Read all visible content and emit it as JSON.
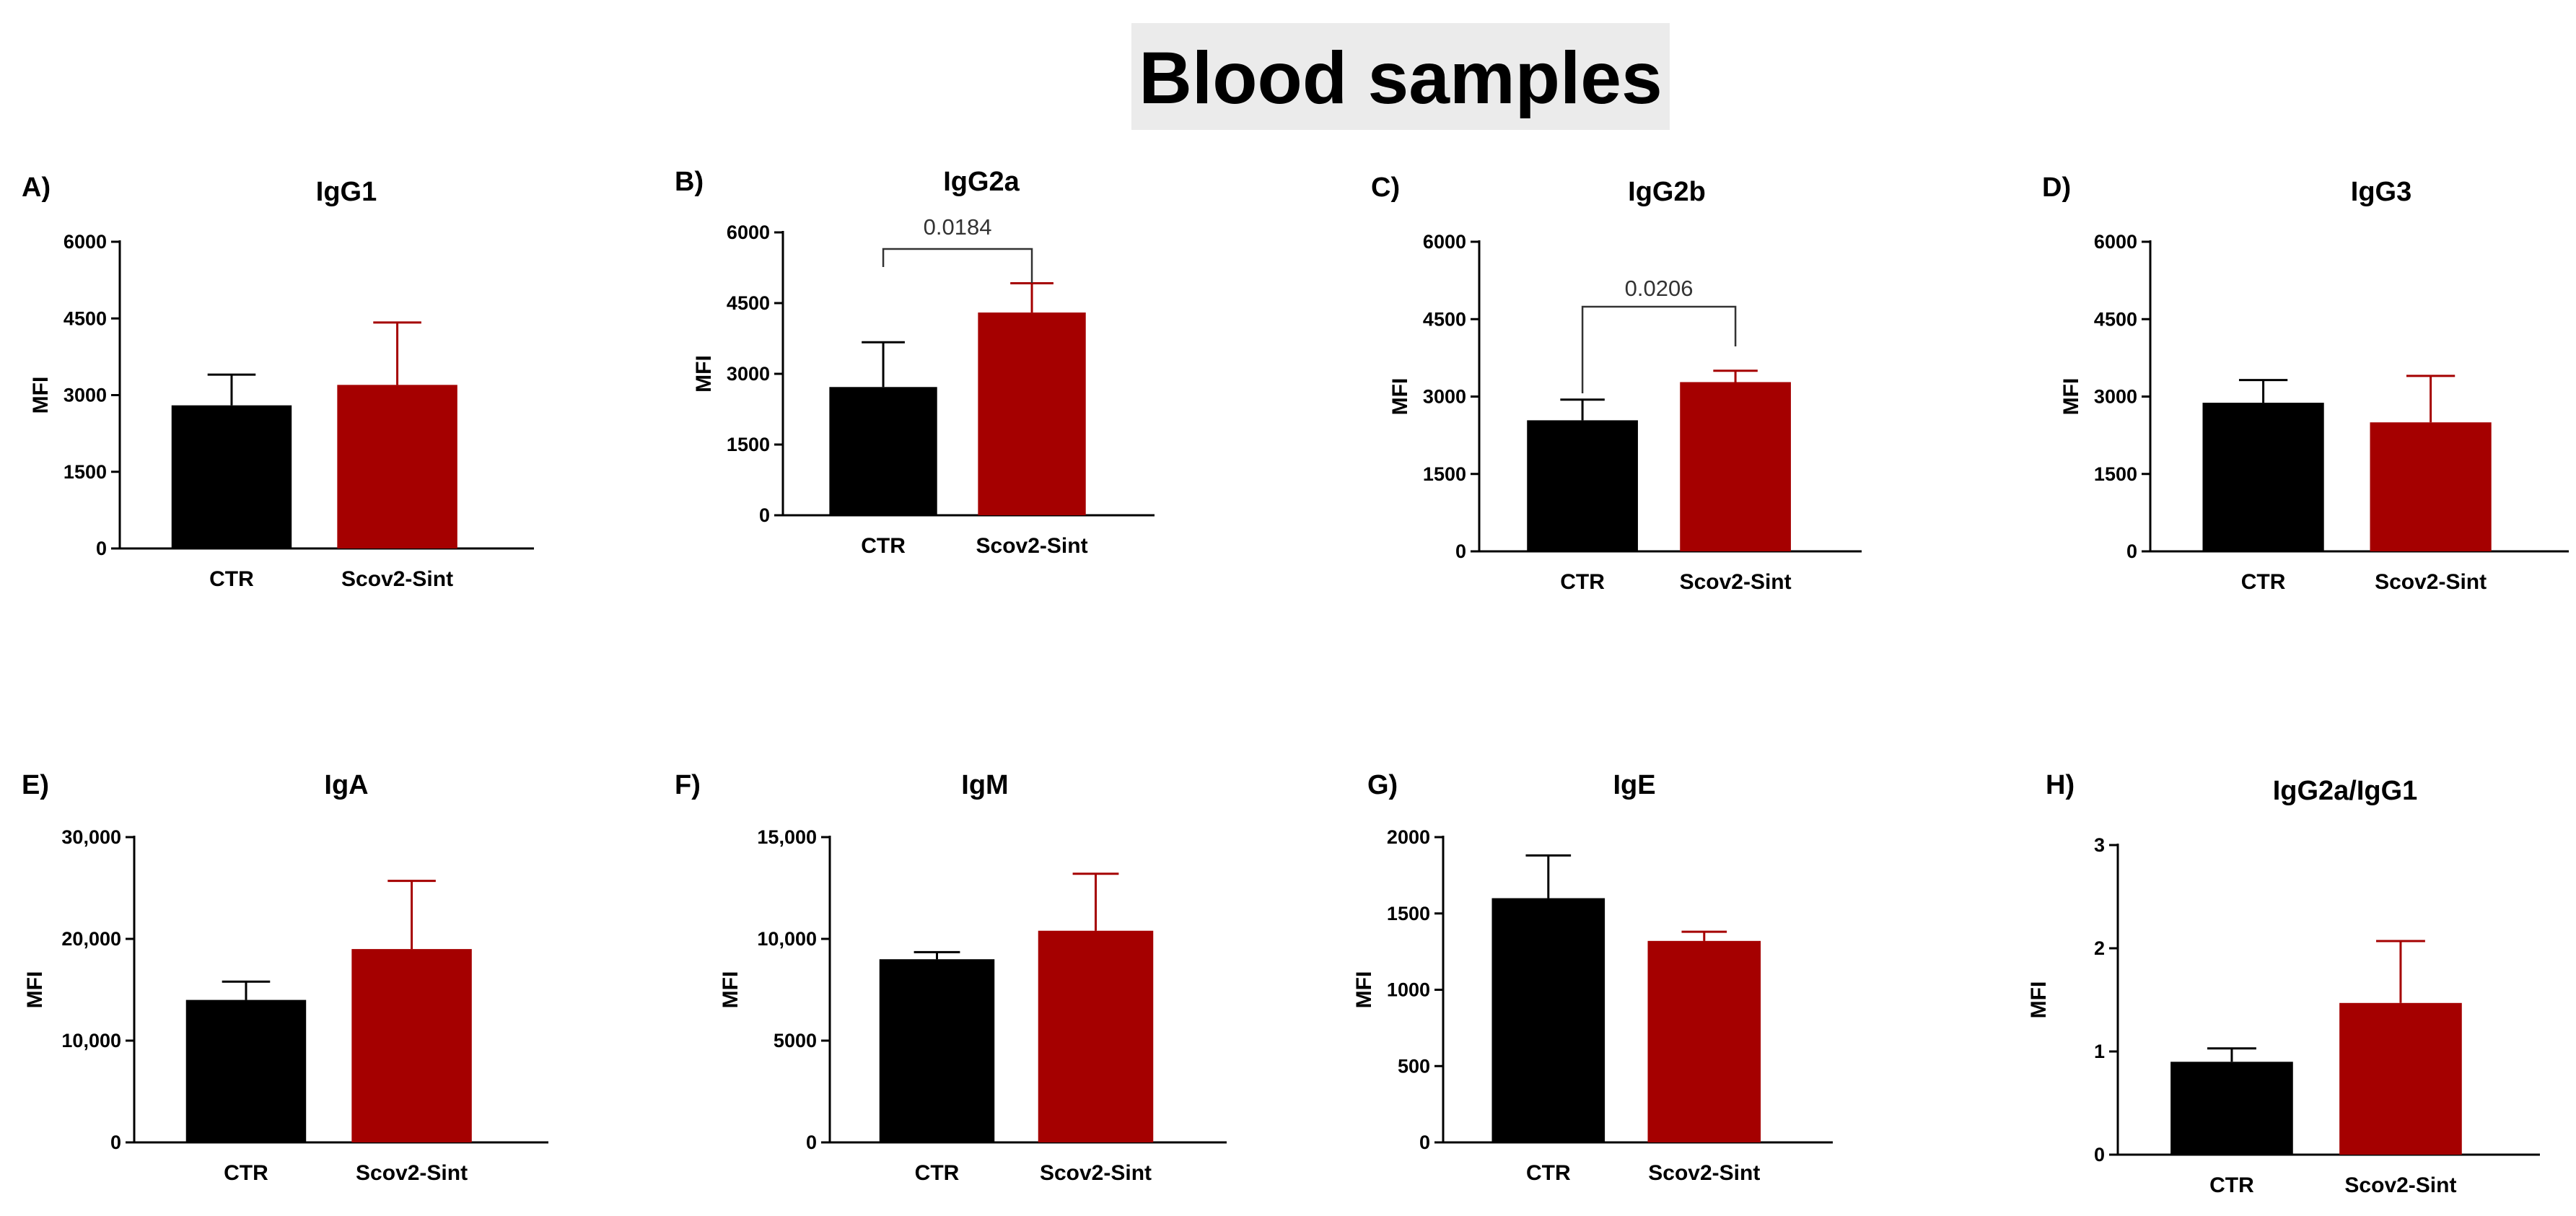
{
  "title": "Blood samples",
  "colors": {
    "CTR": "#000000",
    "Scov2-Sint": "#a50000",
    "axis": "#000000",
    "title_bg": "#ebebeb"
  },
  "chart_data": [
    {
      "type": "bar",
      "panel": "A)",
      "title": "IgG1",
      "ylabel": "MFI",
      "categories": [
        "CTR",
        "Scov2-Sint"
      ],
      "values": [
        2800,
        3200
      ],
      "errors": [
        600,
        1220
      ],
      "ylim": [
        0,
        6000
      ],
      "yticks": [
        "0",
        "1500",
        "3000",
        "4500",
        "6000"
      ],
      "significance": null
    },
    {
      "type": "bar",
      "panel": "B)",
      "title": "IgG2a",
      "ylabel": "MFI",
      "categories": [
        "CTR",
        "Scov2-Sint"
      ],
      "values": [
        2720,
        4300
      ],
      "errors": [
        950,
        620
      ],
      "ylim": [
        0,
        6000
      ],
      "yticks": [
        "0",
        "1500",
        "3000",
        "4500",
        "6000"
      ],
      "significance": "0.0184"
    },
    {
      "type": "bar",
      "panel": "C)",
      "title": "IgG2b",
      "ylabel": "MFI",
      "categories": [
        "CTR",
        "Scov2-Sint"
      ],
      "values": [
        2540,
        3280
      ],
      "errors": [
        400,
        220
      ],
      "ylim": [
        0,
        6000
      ],
      "yticks": [
        "0",
        "1500",
        "3000",
        "4500",
        "6000"
      ],
      "significance": "0.0206"
    },
    {
      "type": "bar",
      "panel": "D)",
      "title": "IgG3",
      "ylabel": "MFI",
      "categories": [
        "CTR",
        "Scov2-Sint"
      ],
      "values": [
        2880,
        2500
      ],
      "errors": [
        440,
        900
      ],
      "ylim": [
        0,
        6000
      ],
      "yticks": [
        "0",
        "1500",
        "3000",
        "4500",
        "6000"
      ],
      "significance": null
    },
    {
      "type": "bar",
      "panel": "E)",
      "title": "IgA",
      "ylabel": "MFI",
      "categories": [
        "CTR",
        "Scov2-Sint"
      ],
      "values": [
        14000,
        19000
      ],
      "errors": [
        1800,
        6700
      ],
      "ylim": [
        0,
        30000
      ],
      "yticks": [
        "0",
        "10,000",
        "20,000",
        "30,000"
      ],
      "significance": null
    },
    {
      "type": "bar",
      "panel": "F)",
      "title": "IgM",
      "ylabel": "MFI",
      "categories": [
        "CTR",
        "Scov2-Sint"
      ],
      "values": [
        9000,
        10400
      ],
      "errors": [
        350,
        2800
      ],
      "ylim": [
        0,
        15000
      ],
      "yticks": [
        "0",
        "5000",
        "10,000",
        "15,000"
      ],
      "significance": null
    },
    {
      "type": "bar",
      "panel": "G)",
      "title": "IgE",
      "ylabel": "MFI",
      "categories": [
        "CTR",
        "Scov2-Sint"
      ],
      "values": [
        1600,
        1320
      ],
      "errors": [
        280,
        60
      ],
      "ylim": [
        0,
        2000
      ],
      "yticks": [
        "0",
        "500",
        "1000",
        "1500",
        "2000"
      ],
      "significance": null
    },
    {
      "type": "bar",
      "panel": "H)",
      "title": "IgG2a/IgG1",
      "ylabel": "MFI",
      "categories": [
        "CTR",
        "Scov2-Sint"
      ],
      "values": [
        0.9,
        1.47
      ],
      "errors": [
        0.13,
        0.6
      ],
      "ylim": [
        0,
        3
      ],
      "yticks": [
        "0",
        "1",
        "2",
        "3"
      ],
      "significance": null
    }
  ]
}
